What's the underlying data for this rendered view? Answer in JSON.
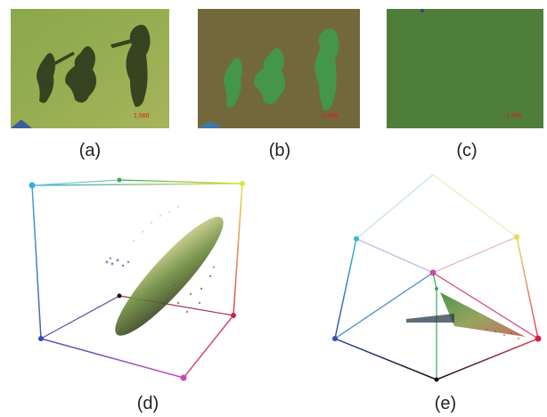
{
  "figure": {
    "panels": [
      {
        "id": "a",
        "caption": "(a)",
        "kind": "photo",
        "content": "Shadows of people on grass (original RGB)",
        "stamp": "1.566"
      },
      {
        "id": "b",
        "caption": "(b)",
        "kind": "photo",
        "content": "Colour-transformed image, shadows in green",
        "stamp": "1.566"
      },
      {
        "id": "c",
        "caption": "(c)",
        "kind": "photo",
        "content": "Uniform green image, shadows removed",
        "stamp": "1.566"
      },
      {
        "id": "d",
        "caption": "(d)",
        "kind": "rgb-cube-scatter",
        "content": "Pixel distribution in RGB colour cube"
      },
      {
        "id": "e",
        "caption": "(e)",
        "kind": "rgb-cube-scatter",
        "content": "Pixel distribution projected in RGB cube (top view)"
      }
    ],
    "colors": {
      "grass": "#8ea64a",
      "shadow": "#2c3a1c",
      "transformed_bg": "#6a6a3a",
      "transformed_shadow": "#3e9a4a",
      "flat_green": "#4f7e3a",
      "stamp": "#e01818"
    }
  }
}
